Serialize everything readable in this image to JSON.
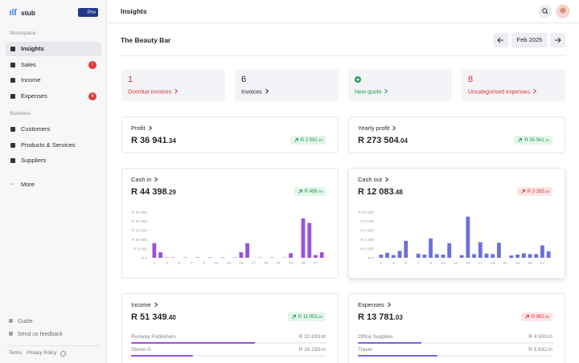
{
  "sidebar": {
    "brand": "stub",
    "plan": "Pro",
    "sections": [
      {
        "title": "Workspace",
        "items": [
          {
            "label": "Insights",
            "active": true
          },
          {
            "label": "Sales",
            "badge": "!"
          },
          {
            "label": "Income"
          },
          {
            "label": "Expenses",
            "badge": "6"
          }
        ]
      },
      {
        "title": "Business",
        "items": [
          {
            "label": "Customers"
          },
          {
            "label": "Products & Services"
          },
          {
            "label": "Suppliers"
          }
        ]
      }
    ],
    "more": "More",
    "footer_links": [
      "Guide",
      "Send us feedback"
    ],
    "legal": [
      "Terms",
      "Privacy Policy"
    ]
  },
  "header": {
    "title": "Insights"
  },
  "toolbar": {
    "business": "The Beauty Bar",
    "period": "Feb 2025"
  },
  "summary": [
    {
      "count": "1",
      "label": "Overdue invoices",
      "tone": "danger"
    },
    {
      "count": "6",
      "label": "Invoices",
      "tone": "neutral"
    },
    {
      "label": "New quote",
      "tone": "success"
    },
    {
      "count": "8",
      "label": "Uncategorised expenses",
      "tone": "danger"
    }
  ],
  "kpis": [
    {
      "title": "Profit",
      "amount": "R 36 941",
      "cents": ".34",
      "change": "R 2 592",
      "change_cents": ".28",
      "trend": "up"
    },
    {
      "title": "Yearly profit",
      "amount": "R 273 504",
      "cents": ".04",
      "change": "R 36 941",
      "change_cents": ".34",
      "trend": "up"
    }
  ],
  "cash_cards": [
    {
      "title": "Cash in",
      "amount": "R 44 398",
      "cents": ".29",
      "change": "R 498",
      "change_cents": ".78",
      "trend": "up"
    },
    {
      "title": "Cash out",
      "amount": "R 12 083",
      "cents": ".48",
      "change": "R 3 265",
      "change_cents": ".49",
      "trend": "down"
    }
  ],
  "chart_data": [
    {
      "type": "bar",
      "color": "#9b51e0",
      "categories": [
        1,
        null,
        3,
        null,
        5,
        null,
        7,
        null,
        9,
        null,
        11,
        null,
        13,
        null,
        15,
        null,
        17,
        null,
        19,
        null,
        21,
        null,
        23,
        null,
        25,
        null,
        27,
        null
      ],
      "values": [
        8000,
        3000,
        200,
        200,
        0,
        200,
        0,
        200,
        0,
        200,
        0,
        200,
        0,
        200,
        3000,
        8000,
        0,
        200,
        0,
        200,
        0,
        200,
        2500,
        0,
        21500,
        19000,
        1500,
        3000
      ],
      "ylim": [
        0,
        25000
      ],
      "yticks": [
        {
          "value": 0,
          "label": "R 0"
        },
        {
          "value": 5000,
          "label": "R 5 000"
        },
        {
          "value": 10000,
          "label": "R 10 000"
        },
        {
          "value": 15000,
          "label": "R 15 000"
        },
        {
          "value": 20000,
          "label": "R 20 000"
        },
        {
          "value": 25000,
          "label": "R 25 000"
        }
      ]
    },
    {
      "type": "bar",
      "color": "#6c6fdc",
      "categories": [
        1,
        null,
        3,
        null,
        5,
        null,
        7,
        null,
        9,
        null,
        11,
        null,
        13,
        null,
        15,
        null,
        17,
        null,
        19,
        null,
        21,
        null,
        23,
        null,
        25,
        null,
        27,
        null
      ],
      "values": [
        700,
        1100,
        600,
        1500,
        3700,
        0,
        900,
        700,
        4200,
        800,
        700,
        3200,
        0,
        600,
        9000,
        800,
        3400,
        900,
        800,
        3300,
        0,
        500,
        700,
        1000,
        800,
        800,
        2700,
        1400
      ],
      "ylim": [
        0,
        10000
      ],
      "yticks": [
        {
          "value": 0,
          "label": "R 0"
        },
        {
          "value": 2000,
          "label": "R 2 000"
        },
        {
          "value": 4000,
          "label": "R 4 000"
        },
        {
          "value": 6000,
          "label": "R 6 000"
        },
        {
          "value": 8000,
          "label": "R 8 000"
        },
        {
          "value": 10000,
          "label": "R 10 000"
        }
      ]
    }
  ],
  "breakdowns": [
    {
      "title": "Income",
      "amount": "R 51 349",
      "cents": ".40",
      "total": 51349.4,
      "change": "R 11 902",
      "change_cents": ".00",
      "trend": "up",
      "color": "#9b51e0",
      "items": [
        {
          "name": "Runway Publishers",
          "amount": "R 32 633",
          "cents": ".80",
          "value": 32633.8
        },
        {
          "name": "Stevie G",
          "amount": "R 16 230",
          "cents": ".00",
          "value": 16230
        }
      ]
    },
    {
      "title": "Expenses",
      "amount": "R 13 781",
      "cents": ".03",
      "total": 13781.03,
      "change": "R 981",
      "change_cents": ".00",
      "trend": "down",
      "color": "#7b61d9",
      "items": [
        {
          "name": "Office Supplies",
          "amount": "R 4 500",
          "cents": ".00",
          "value": 4500
        },
        {
          "name": "Travel",
          "amount": "R 5 632",
          "cents": ".00",
          "value": 5632
        }
      ]
    }
  ]
}
